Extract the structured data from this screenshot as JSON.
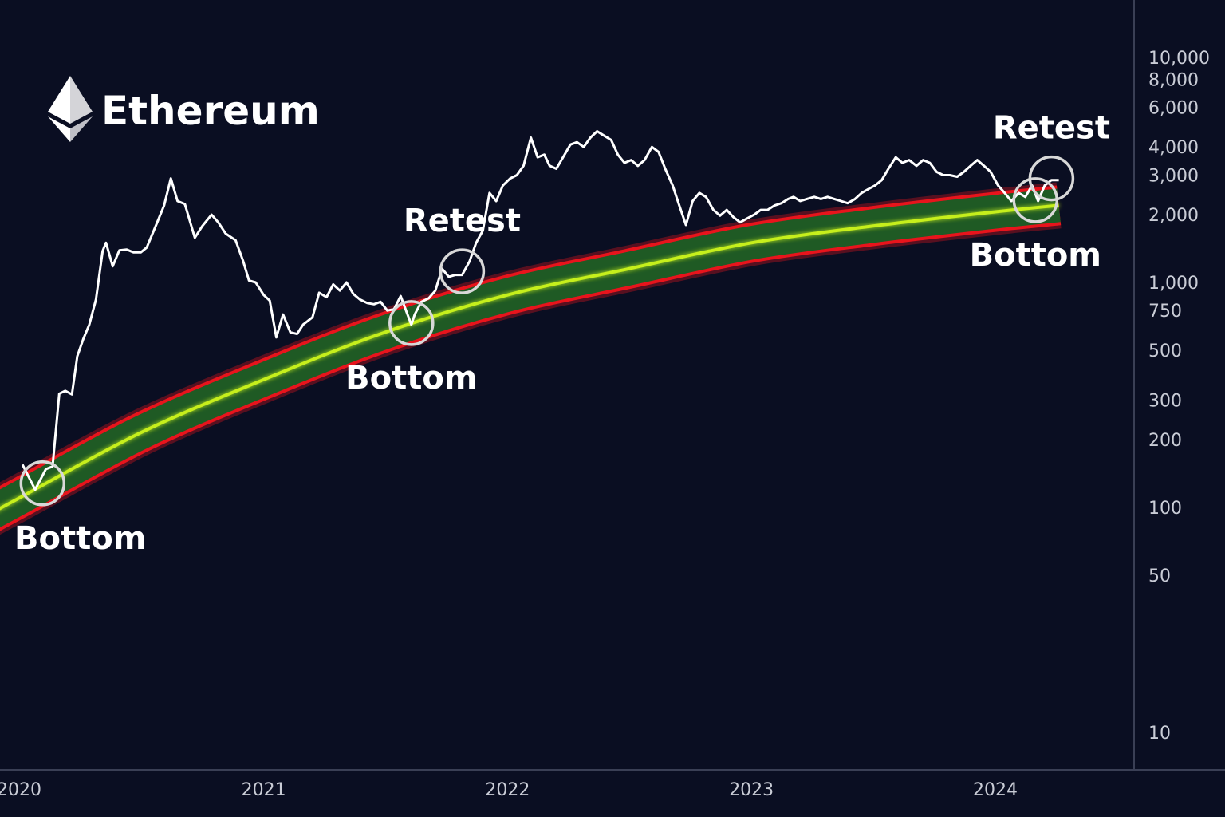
{
  "title": "Ethereum",
  "logo_icon": "ethereum-logo-icon",
  "colors": {
    "background": "#0a0e22",
    "price_line": "#ffffff",
    "band_fill": "#1f5a24",
    "band_edge": "#e8141c",
    "band_center": "#c6ef1c",
    "axis": "#3a3f55",
    "circle": "#d8d8d8"
  },
  "chart_data": {
    "type": "line",
    "title": "Ethereum",
    "xlabel": "",
    "ylabel": "",
    "y_scale": "log",
    "ylim": [
      8,
      12000
    ],
    "xlim": [
      "2020-01-01",
      "2024-09-01"
    ],
    "grid": false,
    "x_ticks": [
      {
        "date": "2020-01-01",
        "label": "2020"
      },
      {
        "date": "2021-01-01",
        "label": "2021"
      },
      {
        "date": "2022-01-01",
        "label": "2022"
      },
      {
        "date": "2023-01-01",
        "label": "2023"
      },
      {
        "date": "2024-01-01",
        "label": "2024"
      }
    ],
    "y_ticks": [
      {
        "value": 10,
        "label": "10"
      },
      {
        "value": 50,
        "label": "50"
      },
      {
        "value": 100,
        "label": "100"
      },
      {
        "value": 200,
        "label": "200"
      },
      {
        "value": 300,
        "label": "300"
      },
      {
        "value": 500,
        "label": "500"
      },
      {
        "value": 750,
        "label": "750"
      },
      {
        "value": 1000,
        "label": "1,000"
      },
      {
        "value": 2000,
        "label": "2,000"
      },
      {
        "value": 3000,
        "label": "3,000"
      },
      {
        "value": 4000,
        "label": "4,000"
      },
      {
        "value": 6000,
        "label": "6,000"
      },
      {
        "value": 8000,
        "label": "8,000"
      },
      {
        "value": 10000,
        "label": "10,000"
      }
    ],
    "series": [
      {
        "type": "line",
        "points": [
          [
            "2020-01-06",
            155
          ],
          [
            "2020-01-25",
            120
          ],
          [
            "2020-02-10",
            148
          ],
          [
            "2020-02-20",
            152
          ],
          [
            "2020-03-01",
            320
          ],
          [
            "2020-03-10",
            330
          ],
          [
            "2020-03-20",
            318
          ],
          [
            "2020-03-28",
            470
          ],
          [
            "2020-04-06",
            560
          ],
          [
            "2020-04-15",
            650
          ],
          [
            "2020-04-25",
            840
          ],
          [
            "2020-05-05",
            1380
          ],
          [
            "2020-05-10",
            1500
          ],
          [
            "2020-05-20",
            1180
          ],
          [
            "2020-05-30",
            1390
          ],
          [
            "2020-06-10",
            1400
          ],
          [
            "2020-06-20",
            1360
          ],
          [
            "2020-07-01",
            1360
          ],
          [
            "2020-07-10",
            1430
          ],
          [
            "2020-07-25",
            1830
          ],
          [
            "2020-08-05",
            2200
          ],
          [
            "2020-08-15",
            2900
          ],
          [
            "2020-08-25",
            2300
          ],
          [
            "2020-09-05",
            2230
          ],
          [
            "2020-09-20",
            1580
          ],
          [
            "2020-10-01",
            1780
          ],
          [
            "2020-10-15",
            2000
          ],
          [
            "2020-10-25",
            1850
          ],
          [
            "2020-11-05",
            1650
          ],
          [
            "2020-11-20",
            1540
          ],
          [
            "2020-12-01",
            1250
          ],
          [
            "2020-12-10",
            1020
          ],
          [
            "2020-12-20",
            1000
          ],
          [
            "2021-01-01",
            880
          ],
          [
            "2021-01-10",
            830
          ],
          [
            "2021-01-20",
            570
          ],
          [
            "2021-01-30",
            720
          ],
          [
            "2021-02-10",
            600
          ],
          [
            "2021-02-20",
            590
          ],
          [
            "2021-03-01",
            650
          ],
          [
            "2021-03-15",
            700
          ],
          [
            "2021-03-25",
            900
          ],
          [
            "2021-04-05",
            860
          ],
          [
            "2021-04-15",
            980
          ],
          [
            "2021-04-25",
            920
          ],
          [
            "2021-05-05",
            1000
          ],
          [
            "2021-05-15",
            890
          ],
          [
            "2021-05-25",
            840
          ],
          [
            "2021-06-05",
            810
          ],
          [
            "2021-06-15",
            800
          ],
          [
            "2021-06-25",
            820
          ],
          [
            "2021-07-05",
            750
          ],
          [
            "2021-07-15",
            760
          ],
          [
            "2021-07-25",
            870
          ],
          [
            "2021-08-05",
            710
          ],
          [
            "2021-08-10",
            650
          ],
          [
            "2021-08-15",
            720
          ],
          [
            "2021-08-25",
            820
          ],
          [
            "2021-09-05",
            850
          ],
          [
            "2021-09-15",
            920
          ],
          [
            "2021-09-25",
            1150
          ],
          [
            "2021-10-05",
            1060
          ],
          [
            "2021-10-15",
            1080
          ],
          [
            "2021-10-25",
            1080
          ],
          [
            "2021-11-05",
            1240
          ],
          [
            "2021-11-15",
            1500
          ],
          [
            "2021-11-25",
            1700
          ],
          [
            "2021-12-05",
            2500
          ],
          [
            "2021-12-15",
            2300
          ],
          [
            "2021-12-25",
            2700
          ],
          [
            "2022-01-05",
            2900
          ],
          [
            "2022-01-15",
            3000
          ],
          [
            "2022-01-25",
            3300
          ],
          [
            "2022-02-05",
            4400
          ],
          [
            "2022-02-15",
            3600
          ],
          [
            "2022-02-25",
            3700
          ],
          [
            "2022-03-05",
            3300
          ],
          [
            "2022-03-15",
            3200
          ],
          [
            "2022-03-25",
            3600
          ],
          [
            "2022-04-05",
            4100
          ],
          [
            "2022-04-15",
            4200
          ],
          [
            "2022-04-25",
            4000
          ],
          [
            "2022-05-05",
            4400
          ],
          [
            "2022-05-15",
            4700
          ],
          [
            "2022-05-25",
            4500
          ],
          [
            "2022-06-05",
            4300
          ],
          [
            "2022-06-15",
            3700
          ],
          [
            "2022-06-25",
            3400
          ],
          [
            "2022-07-05",
            3500
          ],
          [
            "2022-07-15",
            3300
          ],
          [
            "2022-07-25",
            3500
          ],
          [
            "2022-08-05",
            4000
          ],
          [
            "2022-08-15",
            3800
          ],
          [
            "2022-08-25",
            3200
          ],
          [
            "2022-09-05",
            2700
          ],
          [
            "2022-09-15",
            2200
          ],
          [
            "2022-09-25",
            1800
          ],
          [
            "2022-10-05",
            2300
          ],
          [
            "2022-10-15",
            2500
          ],
          [
            "2022-10-25",
            2400
          ],
          [
            "2022-11-05",
            2100
          ],
          [
            "2022-11-15",
            1980
          ],
          [
            "2022-11-25",
            2100
          ],
          [
            "2022-12-05",
            1950
          ],
          [
            "2022-12-15",
            1850
          ],
          [
            "2022-12-25",
            1920
          ],
          [
            "2023-01-05",
            2000
          ],
          [
            "2023-01-15",
            2100
          ],
          [
            "2023-01-25",
            2100
          ],
          [
            "2023-02-05",
            2200
          ],
          [
            "2023-02-15",
            2250
          ],
          [
            "2023-02-25",
            2350
          ],
          [
            "2023-03-05",
            2400
          ],
          [
            "2023-03-15",
            2300
          ],
          [
            "2023-03-25",
            2350
          ],
          [
            "2023-04-05",
            2400
          ],
          [
            "2023-04-15",
            2350
          ],
          [
            "2023-04-25",
            2400
          ],
          [
            "2023-05-05",
            2350
          ],
          [
            "2023-05-15",
            2300
          ],
          [
            "2023-05-25",
            2250
          ],
          [
            "2023-06-05",
            2350
          ],
          [
            "2023-06-15",
            2500
          ],
          [
            "2023-06-25",
            2600
          ],
          [
            "2023-07-05",
            2700
          ],
          [
            "2023-07-15",
            2850
          ],
          [
            "2023-07-25",
            3200
          ],
          [
            "2023-08-05",
            3600
          ],
          [
            "2023-08-15",
            3400
          ],
          [
            "2023-08-25",
            3500
          ],
          [
            "2023-09-05",
            3300
          ],
          [
            "2023-09-15",
            3500
          ],
          [
            "2023-09-25",
            3400
          ],
          [
            "2023-10-05",
            3100
          ],
          [
            "2023-10-15",
            3000
          ],
          [
            "2023-10-25",
            3000
          ],
          [
            "2023-11-05",
            2950
          ],
          [
            "2023-11-15",
            3100
          ],
          [
            "2023-11-25",
            3300
          ],
          [
            "2023-12-05",
            3500
          ],
          [
            "2023-12-15",
            3300
          ],
          [
            "2023-12-25",
            3100
          ],
          [
            "2024-01-05",
            2700
          ],
          [
            "2024-01-15",
            2500
          ],
          [
            "2024-01-25",
            2300
          ],
          [
            "2024-02-05",
            2500
          ],
          [
            "2024-02-15",
            2400
          ],
          [
            "2024-02-25",
            2700
          ],
          [
            "2024-03-05",
            2300
          ],
          [
            "2024-03-15",
            2700
          ],
          [
            "2024-03-25",
            2850
          ],
          [
            "2024-04-05",
            2850
          ]
        ]
      },
      {
        "type": "band",
        "points": [
          [
            "2020-01-01",
            110
          ],
          [
            "2020-07-01",
            215
          ],
          [
            "2021-01-01",
            370
          ],
          [
            "2021-07-01",
            600
          ],
          [
            "2022-01-01",
            880
          ],
          [
            "2022-07-01",
            1150
          ],
          [
            "2023-01-01",
            1500
          ],
          [
            "2023-07-01",
            1780
          ],
          [
            "2024-01-01",
            2060
          ],
          [
            "2024-04-05",
            2200
          ]
        ]
      }
    ],
    "annotations": [
      {
        "text": "Bottom",
        "date": "2020-02-05",
        "value": 128,
        "label_position": "below"
      },
      {
        "text": "Bottom",
        "date": "2021-08-10",
        "value": 660,
        "label_position": "below"
      },
      {
        "text": "Retest",
        "date": "2021-10-25",
        "value": 1120,
        "label_position": "above"
      },
      {
        "text": "Bottom",
        "date": "2024-03-01",
        "value": 2320,
        "label_position": "below"
      },
      {
        "text": "Retest",
        "date": "2024-03-25",
        "value": 2900,
        "label_position": "above"
      }
    ]
  }
}
